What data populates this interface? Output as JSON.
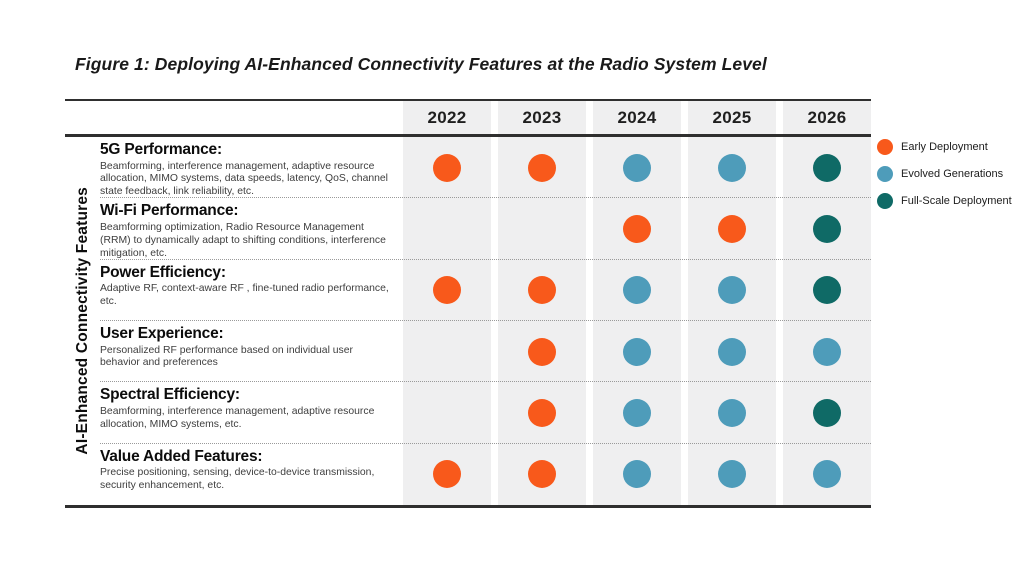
{
  "figure": {
    "title": "Figure 1: Deploying AI-Enhanced Connectivity Features at the Radio System Level",
    "y_axis_label": "AI-Enhanced Connectivity Features"
  },
  "years": [
    "2022",
    "2023",
    "2024",
    "2025",
    "2026"
  ],
  "colors": {
    "early": "#F8591B",
    "evolved": "#4E9CBA",
    "full": "#0F6A66",
    "column_bg": "#EFEFF0",
    "rule": "#2F2F2F"
  },
  "legend": [
    {
      "key": "early",
      "label": "Early Deployment"
    },
    {
      "key": "evolved",
      "label": "Evolved Generations"
    },
    {
      "key": "full",
      "label": "Full-Scale Deployment"
    }
  ],
  "rows": [
    {
      "title": "5G Performance:",
      "description": "Beamforming, interference management, adaptive resource allocation, MIMO systems, data speeds, latency, QoS, channel state feedback, link reliability, etc.",
      "cells": [
        "early",
        "early",
        "evolved",
        "evolved",
        "full"
      ]
    },
    {
      "title": "Wi-Fi Performance:",
      "description": "Beamforming optimization, Radio Resource Management (RRM) to dynamically adapt to shifting conditions, interference mitigation, etc.",
      "cells": [
        null,
        null,
        "early",
        "early",
        "full"
      ]
    },
    {
      "title": "Power Efficiency:",
      "description": "Adaptive RF, context-aware RF , fine-tuned radio performance, etc.",
      "cells": [
        "early",
        "early",
        "evolved",
        "evolved",
        "full"
      ]
    },
    {
      "title": "User Experience:",
      "description": "Personalized RF performance based on individual user behavior and preferences",
      "cells": [
        null,
        "early",
        "evolved",
        "evolved",
        "evolved"
      ]
    },
    {
      "title": "Spectral Efficiency:",
      "description": "Beamforming, interference management, adaptive resource allocation, MIMO systems, etc.",
      "cells": [
        null,
        "early",
        "evolved",
        "evolved",
        "full"
      ]
    },
    {
      "title": "Value Added Features:",
      "description": "Precise positioning, sensing, device-to-device transmission, security enhancement,  etc.",
      "cells": [
        "early",
        "early",
        "evolved",
        "evolved",
        "evolved"
      ]
    }
  ],
  "chart_data": {
    "type": "table",
    "title": "Figure 1: Deploying AI-Enhanced Connectivity Features at the Radio System Level",
    "x": [
      "2022",
      "2023",
      "2024",
      "2025",
      "2026"
    ],
    "ylabel": "AI-Enhanced Connectivity Features",
    "legend": [
      "Early Deployment",
      "Evolved Generations",
      "Full-Scale Deployment"
    ],
    "legend_position": "right",
    "series": [
      {
        "name": "5G Performance",
        "values": [
          "Early Deployment",
          "Early Deployment",
          "Evolved Generations",
          "Evolved Generations",
          "Full-Scale Deployment"
        ]
      },
      {
        "name": "Wi-Fi Performance",
        "values": [
          null,
          null,
          "Early Deployment",
          "Early Deployment",
          "Full-Scale Deployment"
        ]
      },
      {
        "name": "Power Efficiency",
        "values": [
          "Early Deployment",
          "Early Deployment",
          "Evolved Generations",
          "Evolved Generations",
          "Full-Scale Deployment"
        ]
      },
      {
        "name": "User Experience",
        "values": [
          null,
          "Early Deployment",
          "Evolved Generations",
          "Evolved Generations",
          "Evolved Generations"
        ]
      },
      {
        "name": "Spectral Efficiency",
        "values": [
          null,
          "Early Deployment",
          "Evolved Generations",
          "Evolved Generations",
          "Full-Scale Deployment"
        ]
      },
      {
        "name": "Value Added Features",
        "values": [
          "Early Deployment",
          "Early Deployment",
          "Evolved Generations",
          "Evolved Generations",
          "Evolved Generations"
        ]
      }
    ]
  }
}
